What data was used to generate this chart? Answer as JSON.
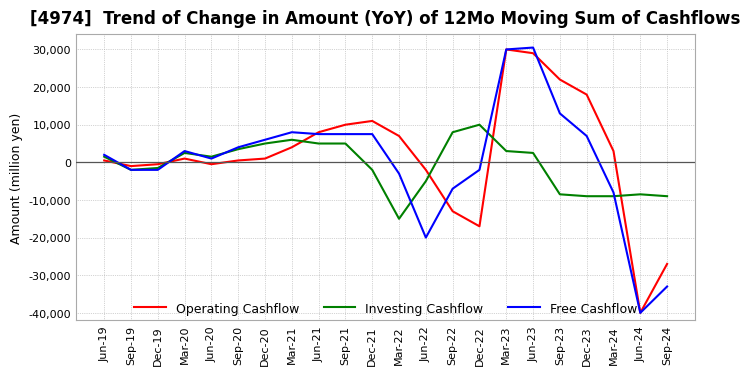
{
  "title": "[4974]  Trend of Change in Amount (YoY) of 12Mo Moving Sum of Cashflows",
  "ylabel": "Amount (million yen)",
  "ylim": [
    -42000,
    34000
  ],
  "yticks": [
    -40000,
    -30000,
    -20000,
    -10000,
    0,
    10000,
    20000,
    30000
  ],
  "x_labels": [
    "Jun-19",
    "Sep-19",
    "Dec-19",
    "Mar-20",
    "Jun-20",
    "Sep-20",
    "Dec-20",
    "Mar-21",
    "Jun-21",
    "Sep-21",
    "Dec-21",
    "Mar-22",
    "Jun-22",
    "Sep-22",
    "Dec-22",
    "Mar-23",
    "Jun-23",
    "Sep-23",
    "Dec-23",
    "Mar-24",
    "Jun-24",
    "Sep-24"
  ],
  "operating": [
    500,
    -1000,
    -500,
    1000,
    -500,
    500,
    1000,
    4000,
    8000,
    10000,
    11000,
    7000,
    -2000,
    -13000,
    -17000,
    30000,
    29000,
    22000,
    18000,
    3000,
    -40000,
    -27000
  ],
  "investing": [
    1500,
    -2000,
    -1500,
    2500,
    1500,
    3500,
    5000,
    6000,
    5000,
    5000,
    -2000,
    -15000,
    -5000,
    8000,
    10000,
    3000,
    2500,
    -8500,
    -9000,
    -9000,
    -8500,
    -9000
  ],
  "free": [
    2000,
    -2000,
    -2000,
    3000,
    1000,
    4000,
    6000,
    8000,
    7500,
    7500,
    7500,
    -3000,
    -20000,
    -7000,
    -2000,
    30000,
    30500,
    13000,
    7000,
    -8000,
    -40000,
    -33000
  ],
  "operating_color": "#ff0000",
  "investing_color": "#008000",
  "free_color": "#0000ff",
  "line_width": 1.5,
  "grid_color": "#aaaaaa",
  "background_color": "#ffffff",
  "title_fontsize": 12,
  "label_fontsize": 9,
  "tick_fontsize": 8
}
